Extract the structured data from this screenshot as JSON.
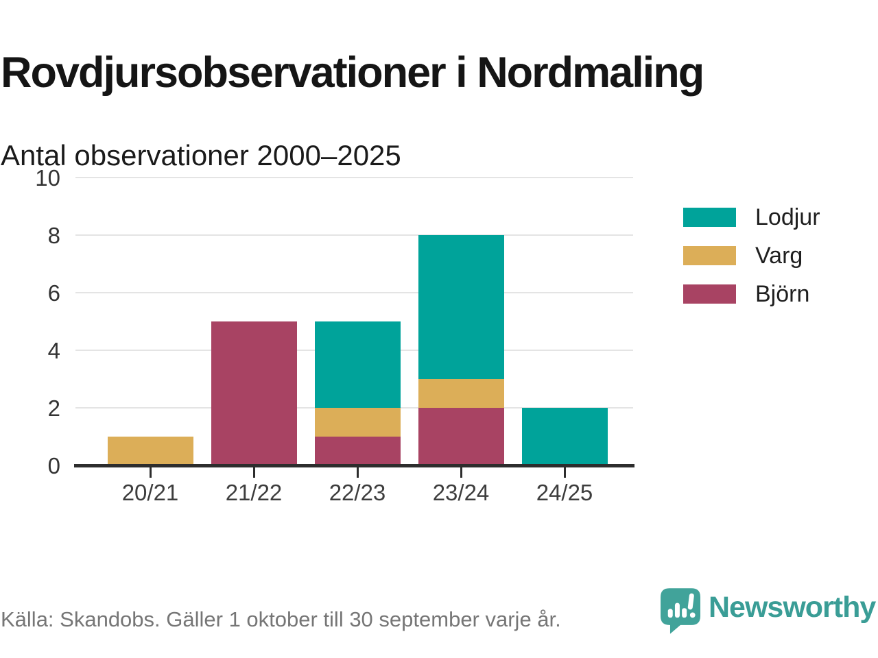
{
  "header": {
    "title": "Rovdjursobservationer i Nordmaling",
    "subtitle": "Antal observationer 2000–2025"
  },
  "chart_data": {
    "type": "bar",
    "stacked": true,
    "title": "Rovdjursobservationer i Nordmaling",
    "subtitle": "Antal observationer 2000–2025",
    "categories": [
      "20/21",
      "21/22",
      "22/23",
      "23/24",
      "24/25"
    ],
    "series": [
      {
        "name": "Björn",
        "color": "#A84363",
        "values": [
          0,
          5,
          1,
          2,
          0
        ]
      },
      {
        "name": "Varg",
        "color": "#DCAE58",
        "values": [
          1,
          0,
          1,
          1,
          0
        ]
      },
      {
        "name": "Lodjur",
        "color": "#00A39A",
        "values": [
          0,
          0,
          3,
          5,
          2
        ]
      }
    ],
    "totals": [
      1,
      5,
      5,
      8,
      2
    ],
    "xlabel": "",
    "ylabel": "",
    "ylim": [
      0,
      10
    ],
    "yticks": [
      0,
      2,
      4,
      6,
      8,
      10
    ],
    "grid": "horizontal",
    "legend_position": "right",
    "legend_order": [
      "Lodjur",
      "Varg",
      "Björn"
    ]
  },
  "legend": {
    "items": [
      {
        "label": "Lodjur",
        "color": "#00A39A"
      },
      {
        "label": "Varg",
        "color": "#DCAE58"
      },
      {
        "label": "Björn",
        "color": "#A84363"
      }
    ]
  },
  "footer": {
    "source": "Källa: Skandobs. Gäller 1 oktober till 30 september varje år."
  },
  "branding": {
    "name": "Newsworthy",
    "color": "#3A9D96",
    "icon": "newsworthy-speech-bubble-chart-icon"
  },
  "colors": {
    "teal": "#00A39A",
    "gold": "#DCAE58",
    "maroon": "#A84363",
    "axis": "#2d2d2d",
    "gridline": "#e4e4e4",
    "brand_teal": "#3A9D96"
  }
}
